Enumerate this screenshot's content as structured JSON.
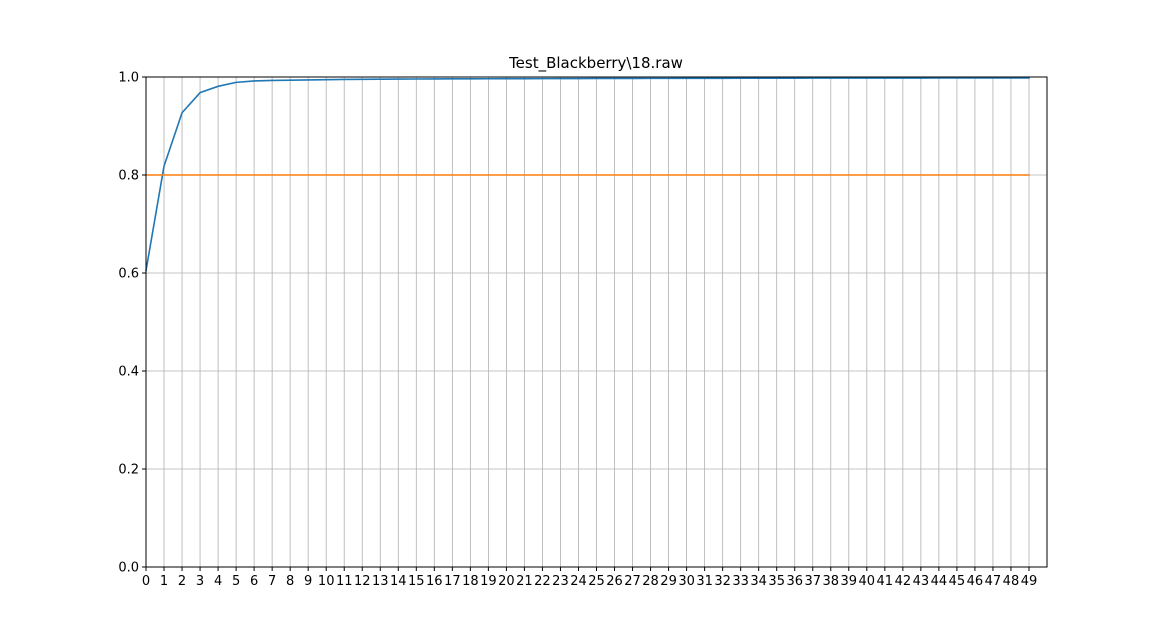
{
  "chart_data": {
    "type": "line",
    "title": "Test_Blackberry\\18.raw",
    "xlabel": "",
    "ylabel": "",
    "x": [
      0,
      1,
      2,
      3,
      4,
      5,
      6,
      7,
      8,
      9,
      10,
      11,
      12,
      13,
      14,
      15,
      16,
      17,
      18,
      19,
      20,
      21,
      22,
      23,
      24,
      25,
      26,
      27,
      28,
      29,
      30,
      31,
      32,
      33,
      34,
      35,
      36,
      37,
      38,
      39,
      40,
      41,
      42,
      43,
      44,
      45,
      46,
      47,
      48,
      49
    ],
    "xlim": [
      0,
      50
    ],
    "ylim": [
      0.0,
      1.0
    ],
    "x_ticks": [
      0,
      1,
      2,
      3,
      4,
      5,
      6,
      7,
      8,
      9,
      10,
      11,
      12,
      13,
      14,
      15,
      16,
      17,
      18,
      19,
      20,
      21,
      22,
      23,
      24,
      25,
      26,
      27,
      28,
      29,
      30,
      31,
      32,
      33,
      34,
      35,
      36,
      37,
      38,
      39,
      40,
      41,
      42,
      43,
      44,
      45,
      46,
      47,
      48,
      49
    ],
    "y_ticks": [
      "0.0",
      "0.2",
      "0.4",
      "0.6",
      "0.8",
      "1.0"
    ],
    "grid": true,
    "series": [
      {
        "color": "#1f77b4",
        "values": [
          0.605,
          0.818,
          0.927,
          0.968,
          0.981,
          0.989,
          0.992,
          0.993,
          0.9935,
          0.994,
          0.9945,
          0.995,
          0.9953,
          0.9955,
          0.9957,
          0.9959,
          0.996,
          0.9962,
          0.9963,
          0.9964,
          0.9965,
          0.9966,
          0.9967,
          0.9968,
          0.9969,
          0.997,
          0.997,
          0.9971,
          0.9972,
          0.9972,
          0.9973,
          0.9974,
          0.9974,
          0.9975,
          0.9975,
          0.9976,
          0.9976,
          0.9977,
          0.9977,
          0.9978,
          0.9978,
          0.9978,
          0.9979,
          0.9979,
          0.998,
          0.998,
          0.998,
          0.998,
          0.9981,
          0.9981
        ]
      },
      {
        "color": "#ff7f0e",
        "values": [
          0.8,
          0.8,
          0.8,
          0.8,
          0.8,
          0.8,
          0.8,
          0.8,
          0.8,
          0.8,
          0.8,
          0.8,
          0.8,
          0.8,
          0.8,
          0.8,
          0.8,
          0.8,
          0.8,
          0.8,
          0.8,
          0.8,
          0.8,
          0.8,
          0.8,
          0.8,
          0.8,
          0.8,
          0.8,
          0.8,
          0.8,
          0.8,
          0.8,
          0.8,
          0.8,
          0.8,
          0.8,
          0.8,
          0.8,
          0.8,
          0.8,
          0.8,
          0.8,
          0.8,
          0.8,
          0.8,
          0.8,
          0.8,
          0.8,
          0.8
        ]
      }
    ]
  }
}
